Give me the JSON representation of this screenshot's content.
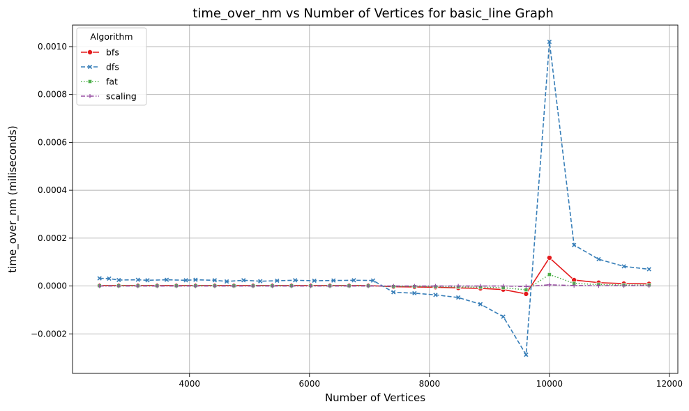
{
  "chart_data": {
    "type": "line",
    "title": "time_over_nm vs Number of Vertices for basic_line Graph",
    "xlabel": "Number of Vertices",
    "ylabel": "time_over_nm (miliseconds)",
    "xlim": [
      2050,
      12140
    ],
    "ylim": [
      -0.000365,
      0.00109
    ],
    "xticks": [
      4000,
      6000,
      8000,
      10000,
      12000
    ],
    "xtick_labels": [
      "4000",
      "6000",
      "8000",
      "10000",
      "12000"
    ],
    "yticks": [
      -0.0002,
      0.0,
      0.0002,
      0.0004,
      0.0006,
      0.0008,
      0.001
    ],
    "ytick_labels": [
      "−0.0002",
      "0.0000",
      "0.0002",
      "0.0004",
      "0.0006",
      "0.0008",
      "0.0010"
    ],
    "grid": true,
    "legend": {
      "title": "Algorithm",
      "placement": "top-left"
    },
    "series": [
      {
        "name": "bfs",
        "color": "#e41a1c",
        "dash": "solid",
        "marker": "circle",
        "points": [
          [
            2500,
            2e-06
          ],
          [
            2820,
            2e-06
          ],
          [
            3140,
            2e-06
          ],
          [
            3460,
            2e-06
          ],
          [
            3780,
            2e-06
          ],
          [
            4100,
            2e-06
          ],
          [
            4420,
            2e-06
          ],
          [
            4740,
            2e-06
          ],
          [
            5060,
            2e-06
          ],
          [
            5380,
            2e-06
          ],
          [
            5700,
            2e-06
          ],
          [
            6020,
            2e-06
          ],
          [
            6340,
            2e-06
          ],
          [
            6660,
            2e-06
          ],
          [
            6980,
            2e-06
          ],
          [
            7400,
            -3e-06
          ],
          [
            7750,
            -4e-06
          ],
          [
            8100,
            -5e-06
          ],
          [
            8480,
            -8e-06
          ],
          [
            8850,
            -1e-05
          ],
          [
            9230,
            -1.5e-05
          ],
          [
            9610,
            -3.3e-05
          ],
          [
            10000,
            0.000118
          ],
          [
            10410,
            2.5e-05
          ],
          [
            10820,
            1.4e-05
          ],
          [
            11240,
            1e-05
          ],
          [
            11660,
            9e-06
          ]
        ]
      },
      {
        "name": "dfs",
        "color": "#377eb8",
        "dash": "dashed",
        "marker": "x",
        "points": [
          [
            2500,
            3.2e-05
          ],
          [
            2660,
            3.1e-05
          ],
          [
            2820,
            2.5e-05
          ],
          [
            3140,
            2.6e-05
          ],
          [
            3300,
            2.4e-05
          ],
          [
            3620,
            2.6e-05
          ],
          [
            3940,
            2.4e-05
          ],
          [
            4100,
            2.6e-05
          ],
          [
            4420,
            2.4e-05
          ],
          [
            4620,
            1.9e-05
          ],
          [
            4900,
            2.4e-05
          ],
          [
            5180,
            2e-05
          ],
          [
            5460,
            2.2e-05
          ],
          [
            5760,
            2.4e-05
          ],
          [
            6080,
            2.2e-05
          ],
          [
            6400,
            2.3e-05
          ],
          [
            6740,
            2.4e-05
          ],
          [
            7060,
            2.3e-05
          ],
          [
            7400,
            -2.6e-05
          ],
          [
            7750,
            -3e-05
          ],
          [
            8100,
            -3.7e-05
          ],
          [
            8480,
            -4.8e-05
          ],
          [
            8850,
            -7.6e-05
          ],
          [
            9230,
            -0.000128
          ],
          [
            9610,
            -0.000287
          ],
          [
            10000,
            0.00102
          ],
          [
            10410,
            0.000171
          ],
          [
            10820,
            0.000112
          ],
          [
            11240,
            8.2e-05
          ],
          [
            11660,
            7e-05
          ]
        ]
      },
      {
        "name": "fat",
        "color": "#4daf4a",
        "dash": "dotted",
        "marker": "square",
        "points": [
          [
            2500,
            1e-06
          ],
          [
            2820,
            1e-06
          ],
          [
            3140,
            1e-06
          ],
          [
            3460,
            1e-06
          ],
          [
            3780,
            1e-06
          ],
          [
            4100,
            1e-06
          ],
          [
            4420,
            1e-06
          ],
          [
            4740,
            1e-06
          ],
          [
            5060,
            1e-06
          ],
          [
            5380,
            1e-06
          ],
          [
            5700,
            1e-06
          ],
          [
            6020,
            1e-06
          ],
          [
            6340,
            1e-06
          ],
          [
            6660,
            1e-06
          ],
          [
            6980,
            1e-06
          ],
          [
            7400,
            -2e-06
          ],
          [
            7750,
            -2e-06
          ],
          [
            8100,
            -3e-06
          ],
          [
            8480,
            -4e-06
          ],
          [
            8850,
            -5e-06
          ],
          [
            9230,
            -7e-06
          ],
          [
            9610,
            -1.6e-05
          ],
          [
            10000,
            4.8e-05
          ],
          [
            10410,
            1.1e-05
          ],
          [
            10820,
            6e-06
          ],
          [
            11240,
            4e-06
          ],
          [
            11660,
            4e-06
          ]
        ]
      },
      {
        "name": "scaling",
        "color": "#984ea3",
        "dash": "dashdot",
        "marker": "plus",
        "points": [
          [
            2500,
            0.0
          ],
          [
            2820,
            0.0
          ],
          [
            3140,
            0.0
          ],
          [
            3460,
            0.0
          ],
          [
            3780,
            0.0
          ],
          [
            4100,
            0.0
          ],
          [
            4420,
            0.0
          ],
          [
            4740,
            0.0
          ],
          [
            5060,
            0.0
          ],
          [
            5380,
            0.0
          ],
          [
            5700,
            0.0
          ],
          [
            6020,
            0.0
          ],
          [
            6340,
            0.0
          ],
          [
            6660,
            0.0
          ],
          [
            6980,
            0.0
          ],
          [
            7400,
            0.0
          ],
          [
            7750,
            0.0
          ],
          [
            8100,
            0.0
          ],
          [
            8480,
            0.0
          ],
          [
            8850,
            0.0
          ],
          [
            9230,
            0.0
          ],
          [
            9610,
            -2e-06
          ],
          [
            10000,
            5e-06
          ],
          [
            10410,
            2e-06
          ],
          [
            10820,
            1e-06
          ],
          [
            11240,
            1e-06
          ],
          [
            11660,
            1e-06
          ]
        ]
      }
    ]
  }
}
